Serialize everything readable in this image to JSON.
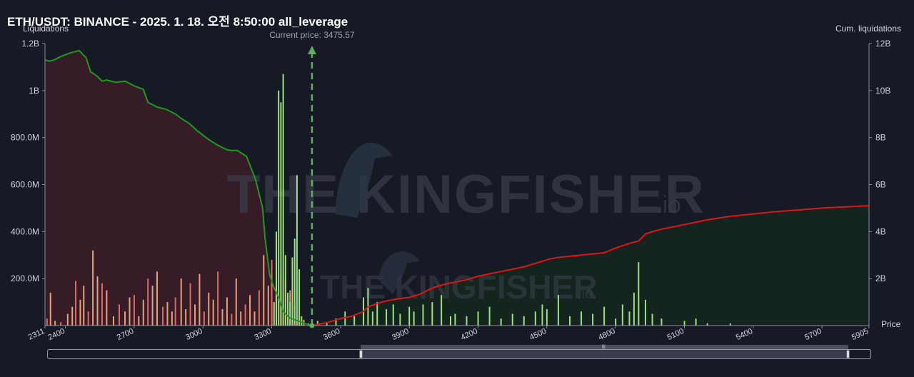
{
  "header": {
    "title": "ETH/USDT: BINANCE - 2025. 1. 18. 오전 8:50:00 all_leverage"
  },
  "chart_data": {
    "type": "bar",
    "left_axis_label": "Liquidations",
    "right_axis_label": "Cum. liquidations",
    "x_axis_label": "Price",
    "current_price_label": "Current price: 3475.57",
    "current_price": 3475.57,
    "xlim": [
      2311,
      5905
    ],
    "x_ticks": [
      "2311",
      "2400",
      "2700",
      "3000",
      "3300",
      "3600",
      "3900",
      "4200",
      "4500",
      "4800",
      "5100",
      "5400",
      "5700",
      "5905"
    ],
    "x_tick_values": [
      2311,
      2400,
      2700,
      3000,
      3300,
      3600,
      3900,
      4200,
      4500,
      4800,
      5100,
      5400,
      5700,
      5905
    ],
    "left_ylim": [
      0,
      1200000000
    ],
    "left_ticks": [
      "200.0M",
      "400.0M",
      "600.0M",
      "800.0M",
      "1B",
      "1.2B"
    ],
    "left_tick_values": [
      200000000,
      400000000,
      600000000,
      800000000,
      1000000000,
      1200000000
    ],
    "right_ylim": [
      0,
      12000000000
    ],
    "right_ticks": [
      "2B",
      "4B",
      "6B",
      "8B",
      "10B",
      "12B"
    ],
    "right_tick_values": [
      2000000000,
      4000000000,
      6000000000,
      8000000000,
      10000000000,
      12000000000
    ],
    "watermark": {
      "big": "THE KINGFISHER",
      "small": "THE KINGFISHER",
      "suffix": ".io"
    },
    "colors": {
      "background": "#161a25",
      "long_fill": "#3a1d27",
      "short_fill": "#14261f",
      "long_cum_line": "#1f9a1f",
      "short_cum_line": "#e01515",
      "long_bar": "#e8a07a",
      "long_bar_alt": "#e06a6a",
      "short_bar": "#9fe07f",
      "current_price_line": "#5fae5f"
    },
    "long_cumulative": {
      "name": "",
      "x": [
        2311,
        2330,
        2350,
        2380,
        2420,
        2460,
        2490,
        2510,
        2540,
        2560,
        2580,
        2620,
        2660,
        2700,
        2740,
        2760,
        2800,
        2840,
        2880,
        2900,
        2940,
        2980,
        3020,
        3060,
        3100,
        3120,
        3150,
        3190,
        3230,
        3260,
        3270,
        3290,
        3310,
        3330,
        3340,
        3350,
        3360,
        3370,
        3380,
        3400,
        3420,
        3440,
        3460,
        3475
      ],
      "y": [
        11300000000,
        11250000000,
        11300000000,
        11450000000,
        11600000000,
        11700000000,
        11400000000,
        10800000000,
        10600000000,
        10400000000,
        10450000000,
        10350000000,
        10400000000,
        10200000000,
        10050000000,
        9500000000,
        9300000000,
        9200000000,
        9000000000,
        8850000000,
        8600000000,
        8250000000,
        7950000000,
        7700000000,
        7500000000,
        7450000000,
        7450000000,
        7200000000,
        6200000000,
        5000000000,
        3800000000,
        2200000000,
        1600000000,
        1200000000,
        900000000,
        600000000,
        500000000,
        400000000,
        320000000,
        250000000,
        180000000,
        110000000,
        40000000,
        0
      ]
    },
    "short_cumulative": {
      "name": "",
      "x": [
        3475,
        3500,
        3550,
        3600,
        3650,
        3700,
        3720,
        3750,
        3780,
        3800,
        3830,
        3860,
        3900,
        3950,
        4000,
        4050,
        4100,
        4150,
        4200,
        4250,
        4300,
        4350,
        4400,
        4450,
        4500,
        4520,
        4550,
        4600,
        4650,
        4700,
        4750,
        4800,
        4830,
        4860,
        4900,
        4930,
        4960,
        5000,
        5050,
        5100,
        5150,
        5200,
        5300,
        5400,
        5500,
        5600,
        5700,
        5800,
        5905
      ],
      "y": [
        0,
        50000000,
        150000000,
        300000000,
        400000000,
        600000000,
        800000000,
        900000000,
        1000000000,
        1050000000,
        1100000000,
        1150000000,
        1200000000,
        1350000000,
        1600000000,
        1750000000,
        1850000000,
        1950000000,
        2100000000,
        2200000000,
        2300000000,
        2400000000,
        2500000000,
        2650000000,
        2800000000,
        2850000000,
        2900000000,
        2950000000,
        3000000000,
        3050000000,
        3100000000,
        3300000000,
        3400000000,
        3500000000,
        3600000000,
        3900000000,
        4000000000,
        4100000000,
        4200000000,
        4300000000,
        4400000000,
        4500000000,
        4650000000,
        4750000000,
        4850000000,
        4920000000,
        5000000000,
        5050000000,
        5100000000
      ]
    },
    "long_liquidation_bars": {
      "x": [
        2320,
        2335,
        2355,
        2380,
        2410,
        2430,
        2445,
        2465,
        2480,
        2500,
        2520,
        2540,
        2560,
        2580,
        2610,
        2635,
        2660,
        2680,
        2700,
        2720,
        2740,
        2760,
        2780,
        2800,
        2825,
        2845,
        2865,
        2880,
        2905,
        2925,
        2945,
        2965,
        2985,
        3005,
        3025,
        3045,
        3065,
        3085,
        3105,
        3125,
        3145,
        3165,
        3185,
        3205,
        3225,
        3245,
        3265,
        3285,
        3300,
        3320,
        3340,
        3360,
        3380,
        3400,
        3420,
        3440,
        3460
      ],
      "values": [
        30000000,
        140000000,
        20000000,
        15000000,
        50000000,
        80000000,
        190000000,
        110000000,
        170000000,
        60000000,
        320000000,
        210000000,
        180000000,
        150000000,
        40000000,
        90000000,
        60000000,
        120000000,
        130000000,
        40000000,
        110000000,
        200000000,
        170000000,
        230000000,
        80000000,
        100000000,
        60000000,
        120000000,
        200000000,
        70000000,
        180000000,
        90000000,
        220000000,
        60000000,
        140000000,
        110000000,
        230000000,
        70000000,
        120000000,
        50000000,
        200000000,
        60000000,
        90000000,
        130000000,
        60000000,
        150000000,
        300000000,
        170000000,
        280000000,
        260000000,
        220000000,
        200000000,
        150000000,
        90000000,
        40000000,
        25000000,
        10000000
      ]
    },
    "short_liquidation_bars": {
      "x": [
        3310,
        3320,
        3330,
        3340,
        3350,
        3360,
        3370,
        3380,
        3390,
        3400,
        3410,
        3420,
        3430,
        3500,
        3540,
        3580,
        3620,
        3660,
        3700,
        3720,
        3740,
        3760,
        3800,
        3830,
        3860,
        3900,
        3920,
        3960,
        4000,
        4040,
        4080,
        4100,
        4150,
        4200,
        4250,
        4300,
        4350,
        4400,
        4450,
        4480,
        4500,
        4550,
        4600,
        4650,
        4700,
        4750,
        4800,
        4830,
        4860,
        4880,
        4900,
        4930,
        4960,
        5000,
        5100,
        5150,
        5200,
        5300
      ],
      "values": [
        100000000,
        400000000,
        1000000000,
        950000000,
        1070000000,
        300000000,
        140000000,
        100000000,
        290000000,
        370000000,
        640000000,
        240000000,
        40000000,
        20000000,
        10000000,
        30000000,
        60000000,
        40000000,
        120000000,
        160000000,
        60000000,
        100000000,
        70000000,
        90000000,
        50000000,
        80000000,
        60000000,
        90000000,
        100000000,
        130000000,
        40000000,
        50000000,
        40000000,
        60000000,
        80000000,
        30000000,
        50000000,
        40000000,
        60000000,
        90000000,
        70000000,
        130000000,
        40000000,
        60000000,
        50000000,
        80000000,
        30000000,
        90000000,
        60000000,
        140000000,
        270000000,
        110000000,
        50000000,
        30000000,
        20000000,
        30000000,
        10000000,
        10000000
      ]
    }
  }
}
